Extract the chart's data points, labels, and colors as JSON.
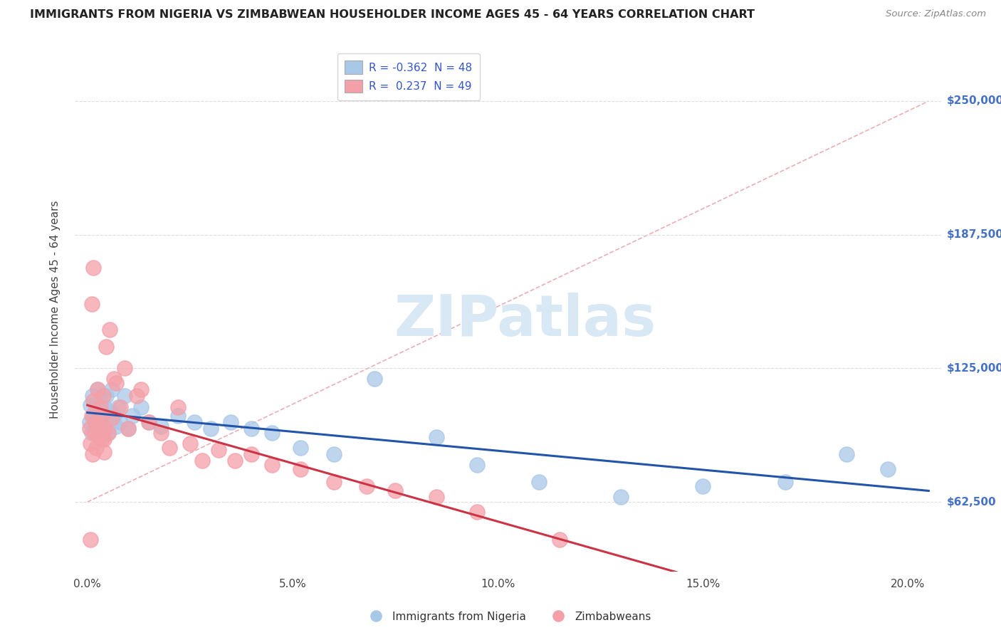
{
  "title": "IMMIGRANTS FROM NIGERIA VS ZIMBABWEAN HOUSEHOLDER INCOME AGES 45 - 64 YEARS CORRELATION CHART",
  "source": "Source: ZipAtlas.com",
  "xlabel_vals": [
    0.0,
    5.0,
    10.0,
    15.0,
    20.0
  ],
  "ylabel_vals": [
    62500,
    125000,
    187500,
    250000
  ],
  "ylabel_labels": [
    "$62,500",
    "$125,000",
    "$187,500",
    "$250,000"
  ],
  "xlim": [
    -0.3,
    20.8
  ],
  "ylim": [
    30000,
    275000
  ],
  "legend_blue_R": -0.362,
  "legend_blue_N": 48,
  "legend_pink_R": 0.237,
  "legend_pink_N": 49,
  "blue_scatter_color": "#A8C8E8",
  "pink_scatter_color": "#F4A0A8",
  "blue_line_color": "#2255AA",
  "pink_line_color": "#CC3344",
  "ref_line_color": "#E8A0A8",
  "watermark_text": "ZIPatlas",
  "watermark_color": "#D8E8F4",
  "background_color": "#FFFFFF",
  "grid_color": "#DDDDDD",
  "nigeria_x": [
    0.05,
    0.08,
    0.1,
    0.12,
    0.15,
    0.18,
    0.2,
    0.22,
    0.25,
    0.28,
    0.3,
    0.32,
    0.35,
    0.38,
    0.4,
    0.42,
    0.45,
    0.48,
    0.5,
    0.55,
    0.6,
    0.65,
    0.7,
    0.75,
    0.8,
    0.9,
    1.0,
    1.1,
    1.3,
    1.5,
    1.8,
    2.2,
    2.6,
    3.0,
    3.5,
    4.0,
    4.5,
    5.2,
    6.0,
    7.0,
    8.5,
    9.5,
    11.0,
    13.0,
    15.0,
    17.0,
    18.5,
    19.5
  ],
  "nigeria_y": [
    100000,
    108000,
    95000,
    112000,
    103000,
    98000,
    107000,
    100000,
    115000,
    97000,
    105000,
    110000,
    100000,
    102000,
    98000,
    107000,
    112000,
    100000,
    95000,
    105000,
    115000,
    103000,
    98000,
    107000,
    100000,
    112000,
    97000,
    103000,
    107000,
    100000,
    98000,
    103000,
    100000,
    97000,
    100000,
    97000,
    95000,
    88000,
    85000,
    120000,
    93000,
    80000,
    72000,
    65000,
    70000,
    72000,
    85000,
    78000
  ],
  "zimbabwe_x": [
    0.05,
    0.08,
    0.1,
    0.12,
    0.15,
    0.18,
    0.2,
    0.22,
    0.25,
    0.28,
    0.3,
    0.32,
    0.35,
    0.38,
    0.4,
    0.45,
    0.5,
    0.55,
    0.6,
    0.65,
    0.7,
    0.8,
    0.9,
    1.0,
    1.2,
    1.5,
    1.8,
    2.0,
    2.5,
    2.8,
    3.2,
    3.6,
    4.0,
    4.5,
    5.2,
    6.0,
    6.8,
    7.5,
    8.5,
    9.5,
    11.5,
    1.3,
    2.2,
    0.35,
    0.4,
    0.42,
    0.15,
    0.1,
    0.08
  ],
  "zimbabwe_y": [
    97000,
    90000,
    103000,
    85000,
    110000,
    95000,
    100000,
    88000,
    115000,
    93000,
    98000,
    107000,
    92000,
    112000,
    86000,
    135000,
    95000,
    143000,
    102000,
    120000,
    118000,
    107000,
    125000,
    97000,
    112000,
    100000,
    95000,
    88000,
    90000,
    82000,
    87000,
    82000,
    85000,
    80000,
    78000,
    72000,
    70000,
    68000,
    65000,
    58000,
    45000,
    115000,
    107000,
    103000,
    92000,
    97000,
    172000,
    155000,
    45000
  ],
  "ref_line_x": [
    0.0,
    20.5
  ],
  "ref_line_y": [
    62500,
    250000
  ]
}
